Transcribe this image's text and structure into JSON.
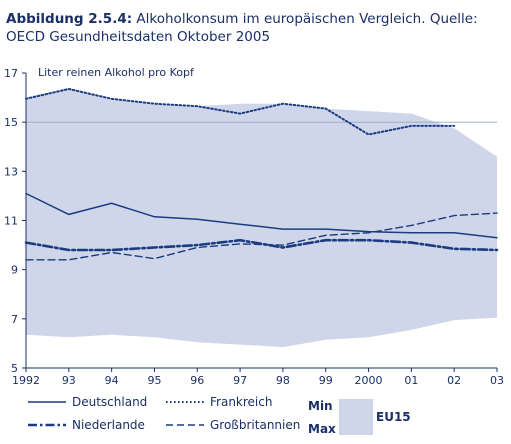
{
  "title": {
    "prefix": "Abbildung 2.5.4:",
    "text": "Alkoholkonsum im europäischen Vergleich. Quelle: OECD Gesundheitsdaten Oktober 2005"
  },
  "chart_data": {
    "type": "line",
    "unit_label": "Liter reinen Alkohol pro Kopf",
    "x_tick_labels": [
      "1992",
      "93",
      "94",
      "95",
      "96",
      "97",
      "98",
      "99",
      "2000",
      "01",
      "02",
      "03"
    ],
    "x": [
      1992,
      1993,
      1994,
      1995,
      1996,
      1997,
      1998,
      1999,
      2000,
      2001,
      2002,
      2003
    ],
    "ylim": [
      5,
      17
    ],
    "y_ticks": [
      5,
      7,
      9,
      11,
      13,
      15,
      17
    ],
    "grid": "horizontal at 15",
    "series": [
      {
        "name": "Deutschland",
        "style": "solid",
        "color": "#1a3c80",
        "values": [
          12.1,
          11.25,
          11.7,
          11.15,
          11.05,
          10.85,
          10.65,
          10.65,
          10.55,
          10.5,
          10.5,
          10.3
        ]
      },
      {
        "name": "Frankreich",
        "style": "dotted",
        "color": "#1a3c80",
        "values": [
          15.95,
          16.35,
          15.95,
          15.75,
          15.65,
          15.35,
          15.75,
          15.55,
          14.5,
          14.85,
          14.85,
          null
        ]
      },
      {
        "name": "Niederlande",
        "style": "dashdot",
        "color": "#1a3c80",
        "values": [
          10.1,
          9.8,
          9.8,
          9.9,
          10.0,
          10.2,
          9.9,
          10.2,
          10.2,
          10.1,
          9.85,
          9.8
        ]
      },
      {
        "name": "Großbritannien",
        "style": "dashed",
        "color": "#1a3c80",
        "values": [
          9.4,
          9.4,
          9.7,
          9.45,
          9.9,
          10.05,
          10.0,
          10.4,
          10.5,
          10.8,
          11.2,
          11.3
        ]
      }
    ],
    "band": {
      "name": "EU15",
      "min_label": "Min",
      "max_label": "Max",
      "color": "#d0d6ea",
      "min": [
        6.35,
        6.25,
        6.35,
        6.25,
        6.05,
        5.95,
        5.85,
        6.15,
        6.25,
        6.55,
        6.95,
        7.05
      ],
      "max": [
        16.0,
        16.4,
        15.95,
        15.75,
        15.65,
        15.75,
        15.75,
        15.55,
        15.45,
        15.35,
        14.75,
        13.6
      ]
    },
    "legend_placement": "bottom"
  }
}
